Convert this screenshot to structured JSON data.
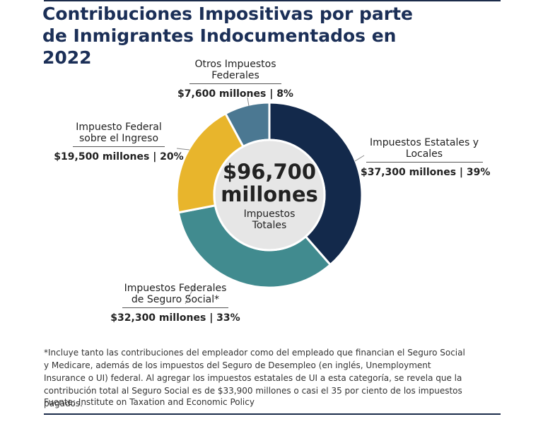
{
  "chart_data": {
    "type": "donut",
    "title": "Contribuciones Impositivas por parte de Inmigrantes Indocumentados en 2022",
    "categories": [
      "Impuestos Estatales y Locales",
      "Impuestos Federales de Seguro Social*",
      "Impuesto Federal sobre el Ingreso",
      "Otros Impuestos Federales"
    ],
    "values": [
      37300,
      32300,
      19500,
      7600
    ],
    "value_labels": [
      "$37,300 millones | 39%",
      "$32,300 millones | 33%",
      "$19,500 millones | 20%",
      "$7,600 millones | 8%"
    ],
    "colors": [
      "#13294b",
      "#418b8f",
      "#e8b52c",
      "#4b7892"
    ],
    "total": 96700,
    "total_label": "$96,700 millones",
    "center_label": "Impuestos Totales",
    "footnote": "*Incluye tanto las contribuciones del empleador como del empleado que financian el Seguro Social y Medicare, además de los impuestos del Seguro de Desempleo (en inglés, Unemployment Insurance o UI) federal. Al agregar los impuestos estatales de UI a esta categoría, se revela que la contribución total al Seguro Social es de $33,900 millones o casi el 35 por ciento de los impuestos pagados.",
    "source": "Fuente: Institute on Taxation and Economic Policy"
  }
}
